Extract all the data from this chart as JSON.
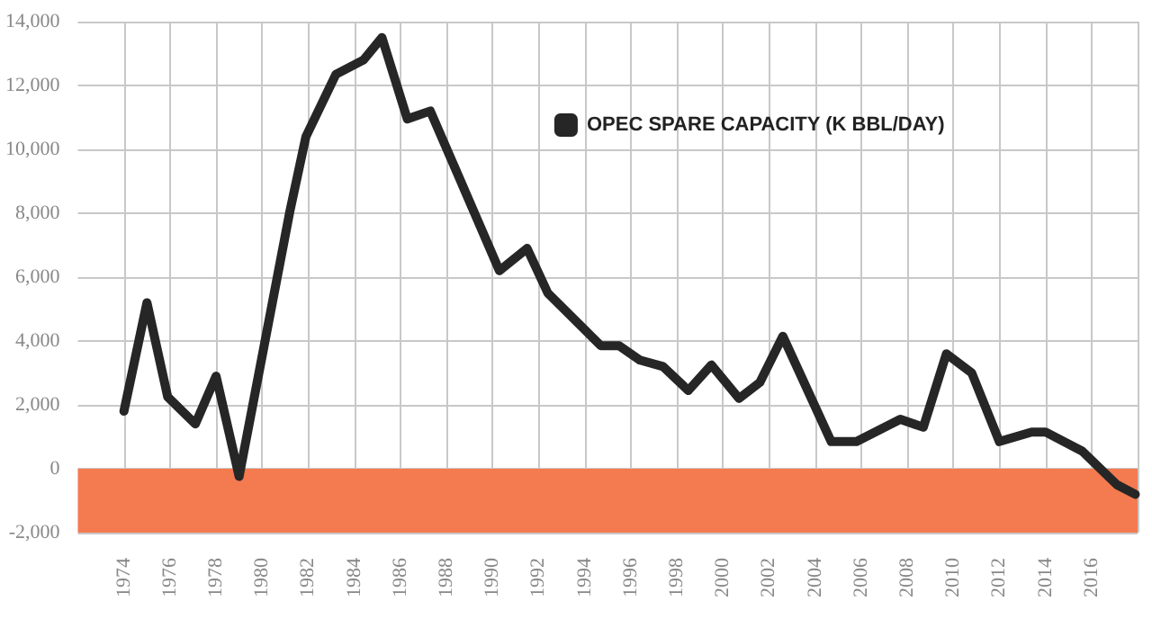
{
  "chart_data": {
    "type": "line",
    "x": [
      1974.0,
      1975.0,
      1975.9,
      1977.1,
      1978.0,
      1979.0,
      1981.2,
      1981.9,
      1983.2,
      1984.4,
      1985.2,
      1986.3,
      1987.3,
      1990.3,
      1991.5,
      1992.4,
      1994.7,
      1995.5,
      1996.4,
      1997.4,
      1998.5,
      1999.5,
      2000.7,
      2001.6,
      2002.6,
      2004.7,
      2005.8,
      2007.7,
      2008.7,
      2009.7,
      2010.8,
      2012.0,
      2013.4,
      2014.0,
      2015.6,
      2017.1,
      2017.9
    ],
    "series": [
      {
        "name": "OPEC SPARE CAPACITY (K BBL/DAY)",
        "color": "#262626",
        "values": [
          1800,
          5200,
          2250,
          1400,
          2900,
          -240,
          8050,
          10400,
          12350,
          12800,
          13500,
          10950,
          11200,
          6200,
          6900,
          5500,
          3850,
          3850,
          3400,
          3200,
          2450,
          3250,
          2200,
          2700,
          4150,
          850,
          850,
          1550,
          1300,
          3600,
          3000,
          850,
          1150,
          1150,
          550,
          -500,
          -800
        ]
      }
    ],
    "xlim": [
      1972,
      2018
    ],
    "xticks": [
      1974,
      1976,
      1978,
      1980,
      1982,
      1984,
      1986,
      1988,
      1990,
      1992,
      1994,
      1996,
      1998,
      2000,
      2002,
      2004,
      2006,
      2008,
      2010,
      2012,
      2014,
      2016,
      {
        "value": 2018,
        "label": null
      }
    ],
    "ylim": [
      -2000,
      14000
    ],
    "yticks": [
      {
        "value": -2000,
        "label": "-2,000"
      },
      0,
      {
        "value": 2000,
        "label": "2,000"
      },
      {
        "value": 4000,
        "label": "4,000"
      },
      {
        "value": 6000,
        "label": "6,000"
      },
      {
        "value": 8000,
        "label": "8,000"
      },
      {
        "value": 10000,
        "label": "10,000"
      },
      {
        "value": 12000,
        "label": "12,000"
      },
      {
        "value": 14000,
        "label": "14,000"
      }
    ],
    "bands": [
      {
        "axis": "y",
        "from": -2000,
        "to": 0,
        "color": "#f47a4f"
      }
    ],
    "grid": true,
    "legend": "top right",
    "marker": "none",
    "line_style": "solid"
  }
}
